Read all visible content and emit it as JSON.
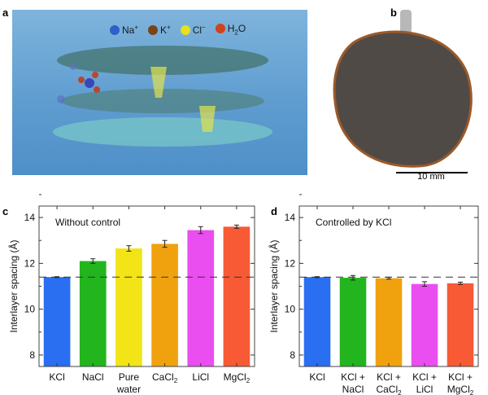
{
  "panels": {
    "a": "a",
    "b": "b",
    "c": "c",
    "d": "d"
  },
  "legend": [
    {
      "label": "Na",
      "sup": "+",
      "color": "#2f5fc8"
    },
    {
      "label": "K",
      "sup": "+",
      "color": "#7a4416"
    },
    {
      "label": "Cl",
      "sup": "−",
      "color": "#e8e020"
    },
    {
      "label": "H",
      "sub": "2",
      "tail": "O",
      "color": "#d0421c"
    }
  ],
  "scale_bar": "10 mm",
  "chart_data": [
    {
      "type": "bar",
      "annotation": "Without control",
      "ylabel": "Interlayer spacing (Å)",
      "ylim": [
        7.5,
        14.5
      ],
      "yticks": [
        8,
        10,
        12,
        14
      ],
      "reference_line": 11.4,
      "categories": [
        {
          "lines": [
            {
              "t": "KCl"
            }
          ]
        },
        {
          "lines": [
            {
              "t": "NaCl"
            }
          ]
        },
        {
          "lines": [
            {
              "t": "Pure"
            },
            {
              "t": "water"
            }
          ]
        },
        {
          "lines": [
            {
              "t": "CaCl",
              "sub": "2"
            }
          ]
        },
        {
          "lines": [
            {
              "t": "LiCl"
            }
          ]
        },
        {
          "lines": [
            {
              "t": "MgCl",
              "sub": "2"
            }
          ]
        }
      ],
      "values": [
        11.4,
        12.1,
        12.65,
        12.85,
        13.45,
        13.6
      ],
      "errors": [
        0.02,
        0.1,
        0.12,
        0.15,
        0.15,
        0.07
      ],
      "colors": [
        "#2a6ef2",
        "#22b51e",
        "#f2e416",
        "#f0a20e",
        "#ea4ef0",
        "#f75a34"
      ]
    },
    {
      "type": "bar",
      "annotation": "Controlled by KCl",
      "ylabel": "Interlayer spacing (Å)",
      "ylim": [
        7.5,
        14.5
      ],
      "yticks": [
        8,
        10,
        12,
        14
      ],
      "reference_line": 11.4,
      "categories": [
        {
          "lines": [
            {
              "t": "KCl"
            }
          ]
        },
        {
          "lines": [
            {
              "t": "KCl +"
            },
            {
              "t": "NaCl"
            }
          ]
        },
        {
          "lines": [
            {
              "t": "KCl +"
            },
            {
              "t": "CaCl",
              "sub": "2"
            }
          ]
        },
        {
          "lines": [
            {
              "t": "KCl +"
            },
            {
              "t": "LiCl"
            }
          ]
        },
        {
          "lines": [
            {
              "t": "KCl +"
            },
            {
              "t": "MgCl",
              "sub": "2"
            }
          ]
        }
      ],
      "values": [
        11.4,
        11.37,
        11.35,
        11.1,
        11.13
      ],
      "errors": [
        0.02,
        0.1,
        0.04,
        0.1,
        0.05
      ],
      "colors": [
        "#2a6ef2",
        "#22b51e",
        "#f0a20e",
        "#ea4ef0",
        "#f75a34"
      ]
    }
  ]
}
